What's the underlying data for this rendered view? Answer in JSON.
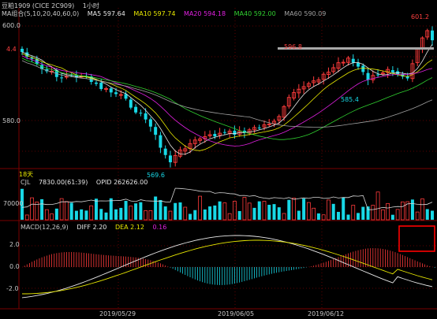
{
  "header": {
    "symbol": "豆粕1909 (CICE 2C909)",
    "period": "1小时",
    "ma_group": "MA组合(5,10,20,40,60,0)",
    "ma5": "MA5 597.64",
    "ma10": "MA10 597.74",
    "ma20": "MA20 594.18",
    "ma40": "MA40 592.00",
    "ma60": "MA60 590.09"
  },
  "price_panel": {
    "y_labels": [
      "600.0",
      "580.0"
    ],
    "annotations": {
      "high": "601.2",
      "resistance": "596.8",
      "low": "569.6",
      "swing_low": "585.4",
      "left_mark": "4.4"
    },
    "bottom_left": "18天"
  },
  "volume_panel": {
    "header": "CJL",
    "vol": "7830.00(61:39)",
    "opi": "OPID 262626.00",
    "y_label": "70000"
  },
  "macd_panel": {
    "name": "MACD(12,26,9)",
    "diff": "DIFF 2.20",
    "dea": "DEA 2.12",
    "macd": "0.16",
    "y_labels": [
      "2.0",
      "0.0",
      "-2.0"
    ]
  },
  "dates": [
    "2019/05/29",
    "2019/06/05",
    "2019/06/12"
  ],
  "colors": {
    "up": "#ff3b3b",
    "down": "#18d8e6",
    "ma5": "#e8e8e8",
    "ma10": "#e8e800",
    "ma20": "#e020e0",
    "ma40": "#30d030",
    "ma60": "#a0a0a0",
    "grid": "#7a0000",
    "highlight": "#ff0000"
  }
}
